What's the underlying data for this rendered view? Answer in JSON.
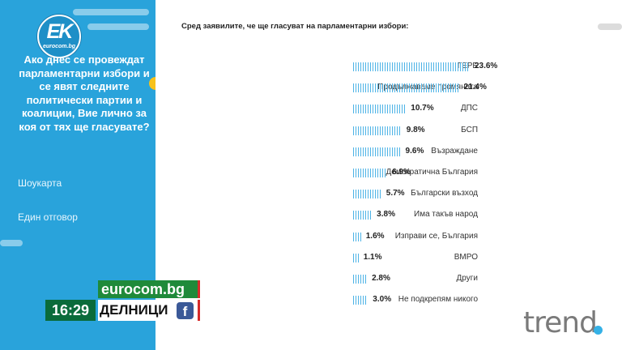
{
  "logo": {
    "letters": "EK",
    "subtitle": "eurocom.bg"
  },
  "question": "Ако днес се провеждат парламентарни избори и се явят следните политически партии и коалиции, Вие лично за коя от тях ще гласувате?",
  "meta": {
    "card_type": "Шоукарта",
    "answer_type": "Един отговор"
  },
  "colors": {
    "panel": "#29a3db",
    "bar": "#4db3e6",
    "accent": "#f7c21b"
  },
  "chart_data": {
    "type": "bar",
    "orientation": "horizontal",
    "title": "Сред заявилите, че ще гласуват на парламентарни избори:",
    "categories": [
      "ГЕРБ",
      "Продължаваме промяната",
      "ДПС",
      "БСП",
      "Възраждане",
      "Демократична България",
      "Български възход",
      "Има такъв народ",
      "Изправи се, България",
      "ВМРО",
      "Други",
      "Не подкрепям никого"
    ],
    "values": [
      23.6,
      21.4,
      10.7,
      9.8,
      9.6,
      6.9,
      5.7,
      3.8,
      1.6,
      1.1,
      2.8,
      3.0
    ],
    "value_labels": [
      "23.6%",
      "21.4%",
      "10.7%",
      "9.8%",
      "9.6%",
      "6.9%",
      "5.7%",
      "3.8%",
      "1.6%",
      "1.1%",
      "2.8%",
      "3.0%"
    ],
    "grid": false
  },
  "ticker": {
    "site": "eurocom.bg",
    "time": "16:29",
    "show": "ДЕЛНИЦИ",
    "social_icon": "facebook-icon"
  },
  "channel_logo": "trend"
}
